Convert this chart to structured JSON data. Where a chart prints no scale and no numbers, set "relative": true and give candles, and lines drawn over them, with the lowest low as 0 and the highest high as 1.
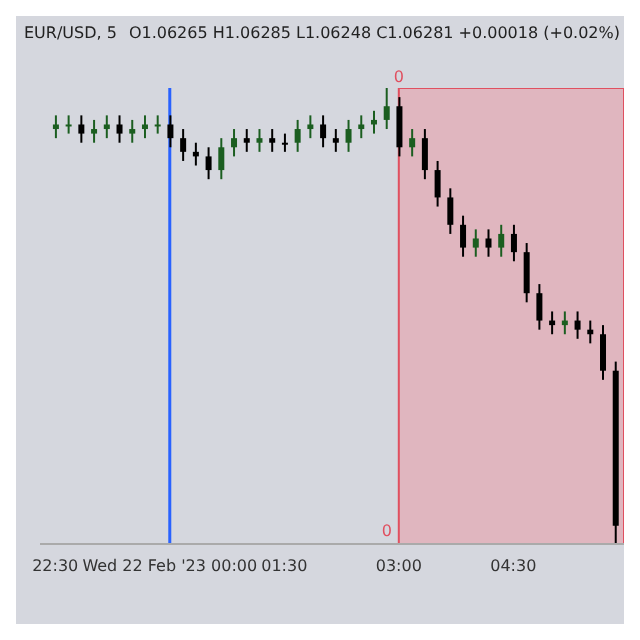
{
  "chart_data": {
    "type": "candlestick",
    "title": "EUR/USD, 5",
    "subtitle": "O1.06265  H1.06285  L1.06248  C1.06281  +0.00018 (+0.02%)",
    "relative": true,
    "x": [
      "2023-02-21T22:30",
      "2023-02-21T22:40",
      "2023-02-21T22:50",
      "2023-02-21T23:00",
      "2023-02-21T23:10",
      "2023-02-21T23:20",
      "2023-02-21T23:30",
      "2023-02-21T23:40",
      "2023-02-21T23:50",
      "2023-02-22T00:00",
      "2023-02-22T00:10",
      "2023-02-22T00:20",
      "2023-02-22T00:30",
      "2023-02-22T00:40",
      "2023-02-22T00:50",
      "2023-02-22T01:00",
      "2023-02-22T01:10",
      "2023-02-22T01:20",
      "2023-02-22T01:30",
      "2023-02-22T01:40",
      "2023-02-22T01:50",
      "2023-02-22T02:00",
      "2023-02-22T02:10",
      "2023-02-22T02:20",
      "2023-02-22T02:30",
      "2023-02-22T02:40",
      "2023-02-22T02:50",
      "2023-02-22T03:00",
      "2023-02-22T03:10",
      "2023-02-22T03:20",
      "2023-02-22T03:30",
      "2023-02-22T03:40",
      "2023-02-22T03:50",
      "2023-02-22T04:00",
      "2023-02-22T04:10",
      "2023-02-22T04:20",
      "2023-02-22T04:30",
      "2023-02-22T04:40",
      "2023-02-22T04:50",
      "2023-02-22T05:00",
      "2023-02-22T05:10",
      "2023-02-22T05:20",
      "2023-02-22T05:30",
      "2023-02-22T05:40",
      "2023-02-22T05:50"
    ],
    "ohlc": [
      [
        0.91,
        0.94,
        0.89,
        0.92
      ],
      [
        0.92,
        0.94,
        0.9,
        0.92
      ],
      [
        0.92,
        0.94,
        0.88,
        0.9
      ],
      [
        0.9,
        0.93,
        0.88,
        0.91
      ],
      [
        0.91,
        0.94,
        0.89,
        0.92
      ],
      [
        0.92,
        0.94,
        0.88,
        0.9
      ],
      [
        0.9,
        0.93,
        0.88,
        0.91
      ],
      [
        0.91,
        0.94,
        0.89,
        0.92
      ],
      [
        0.92,
        0.94,
        0.9,
        0.92
      ],
      [
        0.92,
        0.94,
        0.87,
        0.89
      ],
      [
        0.89,
        0.91,
        0.84,
        0.86
      ],
      [
        0.86,
        0.88,
        0.83,
        0.85
      ],
      [
        0.85,
        0.87,
        0.8,
        0.82
      ],
      [
        0.82,
        0.89,
        0.8,
        0.87
      ],
      [
        0.87,
        0.91,
        0.85,
        0.89
      ],
      [
        0.89,
        0.91,
        0.86,
        0.88
      ],
      [
        0.88,
        0.91,
        0.86,
        0.89
      ],
      [
        0.89,
        0.91,
        0.86,
        0.88
      ],
      [
        0.88,
        0.9,
        0.86,
        0.88
      ],
      [
        0.88,
        0.93,
        0.86,
        0.91
      ],
      [
        0.91,
        0.94,
        0.89,
        0.92
      ],
      [
        0.92,
        0.94,
        0.87,
        0.89
      ],
      [
        0.89,
        0.91,
        0.86,
        0.88
      ],
      [
        0.88,
        0.93,
        0.86,
        0.91
      ],
      [
        0.91,
        0.94,
        0.89,
        0.92
      ],
      [
        0.92,
        0.95,
        0.9,
        0.93
      ],
      [
        0.93,
        1,
        0.91,
        0.96
      ],
      [
        0.96,
        0.98,
        0.85,
        0.87
      ],
      [
        0.87,
        0.91,
        0.85,
        0.89
      ],
      [
        0.89,
        0.91,
        0.8,
        0.82
      ],
      [
        0.82,
        0.84,
        0.74,
        0.76
      ],
      [
        0.76,
        0.78,
        0.68,
        0.7
      ],
      [
        0.7,
        0.72,
        0.63,
        0.65
      ],
      [
        0.65,
        0.69,
        0.63,
        0.67
      ],
      [
        0.67,
        0.69,
        0.63,
        0.65
      ],
      [
        0.65,
        0.7,
        0.63,
        0.68
      ],
      [
        0.68,
        0.7,
        0.62,
        0.64
      ],
      [
        0.64,
        0.66,
        0.53,
        0.55
      ],
      [
        0.55,
        0.57,
        0.47,
        0.49
      ],
      [
        0.49,
        0.51,
        0.46,
        0.48
      ],
      [
        0.48,
        0.51,
        0.46,
        0.49
      ],
      [
        0.49,
        0.51,
        0.45,
        0.47
      ],
      [
        0.47,
        0.49,
        0.44,
        0.46
      ],
      [
        0.46,
        0.48,
        0.36,
        0.38
      ],
      [
        0.38,
        0.4,
        0,
        0.04
      ]
    ],
    "colors": [
      "#1b5e20",
      "#1b5e20",
      "#000000",
      "#1b5e20",
      "#1b5e20",
      "#000000",
      "#1b5e20",
      "#1b5e20",
      "#1b5e20",
      "#000000",
      "#000000",
      "#000000",
      "#000000",
      "#1b5e20",
      "#1b5e20",
      "#000000",
      "#1b5e20",
      "#000000",
      "#000000",
      "#1b5e20",
      "#1b5e20",
      "#000000",
      "#000000",
      "#1b5e20",
      "#1b5e20",
      "#1b5e20",
      "#1b5e20",
      "#000000",
      "#1b5e20",
      "#000000",
      "#000000",
      "#000000",
      "#000000",
      "#1b5e20",
      "#000000",
      "#1b5e20",
      "#000000",
      "#000000",
      "#000000",
      "#000000",
      "#1b5e20",
      "#000000",
      "#000000",
      "#000000",
      "#000000"
    ],
    "xlim": [
      "2023-02-21T22:18",
      "2023-02-22T05:57"
    ],
    "xticks": [
      {
        "value": "2023-02-21T22:30",
        "label": "22:30"
      },
      {
        "value": "2023-02-22T00:00",
        "label": "Wed 22 Feb '23  00:00"
      },
      {
        "value": "2023-02-22T01:30",
        "label": "01:30"
      },
      {
        "value": "2023-02-22T03:00",
        "label": "03:00"
      },
      {
        "value": "2023-02-22T04:30",
        "label": "04:30"
      }
    ],
    "ref_lines": [
      {
        "axis": "x",
        "value": "2023-02-22T00:00",
        "color": "#2962ff"
      }
    ],
    "bands": [
      {
        "axis": "x",
        "from": "2023-02-22T03:00",
        "to": "2023-02-22T05:57",
        "label": "0",
        "color": "#e8a0aa"
      }
    ]
  }
}
